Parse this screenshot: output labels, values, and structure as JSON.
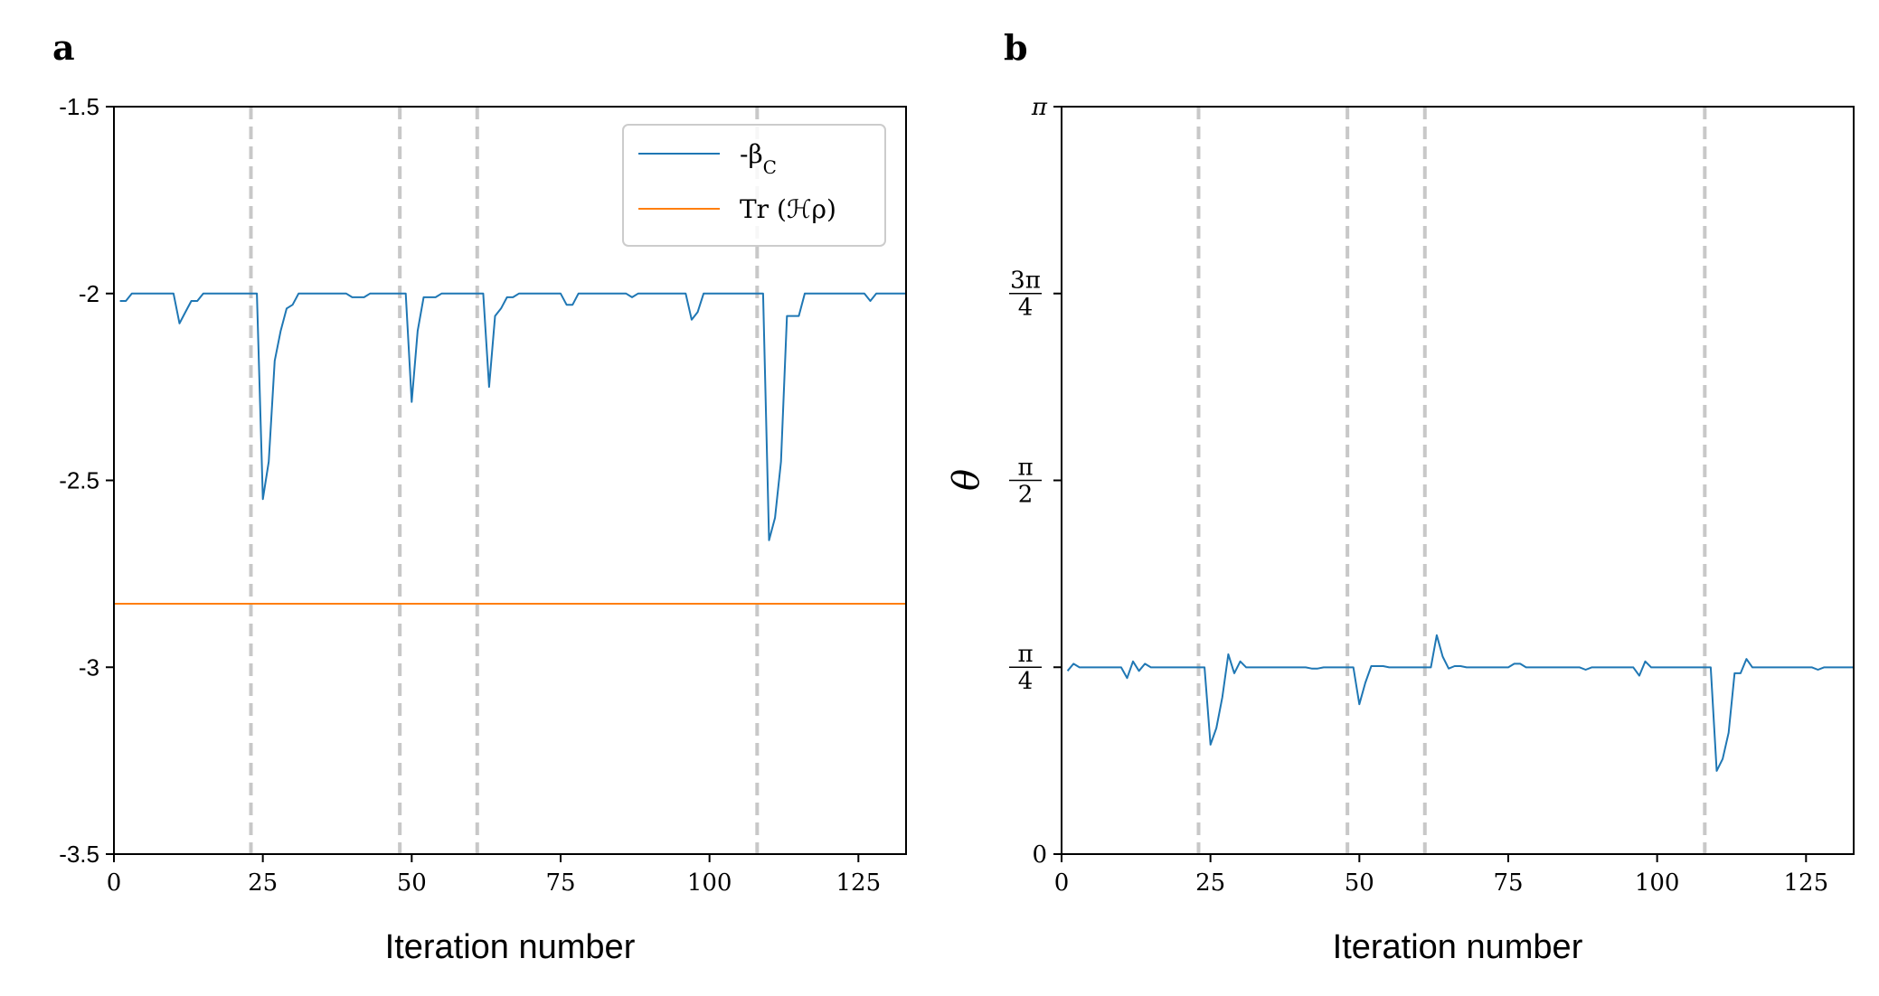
{
  "chart_data": [
    {
      "panel": "a",
      "type": "line",
      "xlabel": "Iteration number",
      "ylabel": "",
      "xlim": [
        0,
        133
      ],
      "ylim": [
        -3.5,
        -1.5
      ],
      "xticks": [
        0,
        25,
        50,
        75,
        100,
        125
      ],
      "xtick_labels": [
        "0",
        "25",
        "50",
        "75",
        "100",
        "125"
      ],
      "yticks": [
        -1.5,
        -2,
        -2.5,
        -3,
        -3.5
      ],
      "ytick_labels": [
        "-1.5",
        "-2",
        "-2.5",
        "-3",
        "-3.5"
      ],
      "vlines": [
        23,
        48,
        61,
        108
      ],
      "legend": "top-right",
      "grid": false,
      "series": [
        {
          "name": "-β_C",
          "legend_label": "-βC",
          "color": "#1f77b4",
          "x": [
            1,
            2,
            3,
            4,
            5,
            6,
            7,
            8,
            9,
            10,
            11,
            12,
            13,
            14,
            15,
            16,
            17,
            18,
            19,
            20,
            21,
            22,
            23,
            24,
            25,
            26,
            27,
            28,
            29,
            30,
            31,
            32,
            33,
            34,
            35,
            36,
            37,
            38,
            39,
            40,
            41,
            42,
            43,
            44,
            45,
            46,
            47,
            48,
            49,
            50,
            51,
            52,
            53,
            54,
            55,
            56,
            57,
            58,
            59,
            60,
            61,
            62,
            63,
            64,
            65,
            66,
            67,
            68,
            69,
            70,
            71,
            72,
            73,
            74,
            75,
            76,
            77,
            78,
            79,
            80,
            81,
            82,
            83,
            84,
            85,
            86,
            87,
            88,
            89,
            90,
            91,
            92,
            93,
            94,
            95,
            96,
            97,
            98,
            99,
            100,
            101,
            102,
            103,
            104,
            105,
            106,
            107,
            108,
            109,
            110,
            111,
            112,
            113,
            114,
            115,
            116,
            117,
            118,
            119,
            120,
            121,
            122,
            123,
            124,
            125,
            126,
            127,
            128,
            129,
            130,
            131,
            132,
            133
          ],
          "y": [
            -2.02,
            -2.02,
            -2.0,
            -2.0,
            -2.0,
            -2.0,
            -2.0,
            -2.0,
            -2.0,
            -2.0,
            -2.08,
            -2.05,
            -2.02,
            -2.02,
            -2.0,
            -2.0,
            -2.0,
            -2.0,
            -2.0,
            -2.0,
            -2.0,
            -2.0,
            -2.0,
            -2.0,
            -2.55,
            -2.45,
            -2.18,
            -2.1,
            -2.04,
            -2.03,
            -2.0,
            -2.0,
            -2.0,
            -2.0,
            -2.0,
            -2.0,
            -2.0,
            -2.0,
            -2.0,
            -2.01,
            -2.01,
            -2.01,
            -2.0,
            -2.0,
            -2.0,
            -2.0,
            -2.0,
            -2.0,
            -2.0,
            -2.29,
            -2.1,
            -2.01,
            -2.01,
            -2.01,
            -2.0,
            -2.0,
            -2.0,
            -2.0,
            -2.0,
            -2.0,
            -2.0,
            -2.0,
            -2.25,
            -2.06,
            -2.04,
            -2.01,
            -2.01,
            -2.0,
            -2.0,
            -2.0,
            -2.0,
            -2.0,
            -2.0,
            -2.0,
            -2.0,
            -2.03,
            -2.03,
            -2.0,
            -2.0,
            -2.0,
            -2.0,
            -2.0,
            -2.0,
            -2.0,
            -2.0,
            -2.0,
            -2.01,
            -2.0,
            -2.0,
            -2.0,
            -2.0,
            -2.0,
            -2.0,
            -2.0,
            -2.0,
            -2.0,
            -2.07,
            -2.05,
            -2.0,
            -2.0,
            -2.0,
            -2.0,
            -2.0,
            -2.0,
            -2.0,
            -2.0,
            -2.0,
            -2.0,
            -2.0,
            -2.66,
            -2.6,
            -2.45,
            -2.06,
            -2.06,
            -2.06,
            -2.0,
            -2.0,
            -2.0,
            -2.0,
            -2.0,
            -2.0,
            -2.0,
            -2.0,
            -2.0,
            -2.0,
            -2.0,
            -2.02,
            -2.0,
            -2.0,
            -2.0,
            -2.0,
            -2.0,
            -2.0
          ]
        },
        {
          "name": "Tr(Hρ)",
          "legend_label": "Tr (ℋρ)",
          "color": "#ff7f0e",
          "x": [
            0,
            133
          ],
          "y": [
            -2.83,
            -2.83
          ]
        }
      ]
    },
    {
      "panel": "b",
      "type": "line",
      "xlabel": "Iteration number",
      "ylabel": "θ",
      "xlim": [
        0,
        133
      ],
      "ylim": [
        0,
        3.14159
      ],
      "xticks": [
        0,
        25,
        50,
        75,
        100,
        125
      ],
      "xtick_labels": [
        "0",
        "25",
        "50",
        "75",
        "100",
        "125"
      ],
      "yticks": [
        0,
        0.785398,
        1.570796,
        2.356194,
        3.14159
      ],
      "ytick_labels": [
        "0",
        "π/4",
        "π/2",
        "3π/4",
        "π"
      ],
      "vlines": [
        23,
        48,
        61,
        108
      ],
      "grid": false,
      "series": [
        {
          "name": "θ",
          "color": "#1f77b4",
          "x": [
            1,
            2,
            3,
            4,
            5,
            6,
            7,
            8,
            9,
            10,
            11,
            12,
            13,
            14,
            15,
            16,
            17,
            18,
            19,
            20,
            21,
            22,
            23,
            24,
            25,
            26,
            27,
            28,
            29,
            30,
            31,
            32,
            33,
            34,
            35,
            36,
            37,
            38,
            39,
            40,
            41,
            42,
            43,
            44,
            45,
            46,
            47,
            48,
            49,
            50,
            51,
            52,
            53,
            54,
            55,
            56,
            57,
            58,
            59,
            60,
            61,
            62,
            63,
            64,
            65,
            66,
            67,
            68,
            69,
            70,
            71,
            72,
            73,
            74,
            75,
            76,
            77,
            78,
            79,
            80,
            81,
            82,
            83,
            84,
            85,
            86,
            87,
            88,
            89,
            90,
            91,
            92,
            93,
            94,
            95,
            96,
            97,
            98,
            99,
            100,
            101,
            102,
            103,
            104,
            105,
            106,
            107,
            108,
            109,
            110,
            111,
            112,
            113,
            114,
            115,
            116,
            117,
            118,
            119,
            120,
            121,
            122,
            123,
            124,
            125,
            126,
            127,
            128,
            129,
            130,
            131,
            132,
            133
          ],
          "y": [
            0.77,
            0.8,
            0.785,
            0.785,
            0.785,
            0.785,
            0.785,
            0.785,
            0.785,
            0.785,
            0.74,
            0.81,
            0.77,
            0.8,
            0.785,
            0.785,
            0.785,
            0.785,
            0.785,
            0.785,
            0.785,
            0.785,
            0.785,
            0.785,
            0.46,
            0.53,
            0.66,
            0.84,
            0.76,
            0.81,
            0.785,
            0.785,
            0.785,
            0.785,
            0.785,
            0.785,
            0.785,
            0.785,
            0.785,
            0.785,
            0.785,
            0.78,
            0.78,
            0.785,
            0.785,
            0.785,
            0.785,
            0.785,
            0.785,
            0.63,
            0.72,
            0.79,
            0.79,
            0.79,
            0.785,
            0.785,
            0.785,
            0.785,
            0.785,
            0.785,
            0.785,
            0.785,
            0.92,
            0.83,
            0.78,
            0.79,
            0.79,
            0.785,
            0.785,
            0.785,
            0.785,
            0.785,
            0.785,
            0.785,
            0.785,
            0.8,
            0.8,
            0.785,
            0.785,
            0.785,
            0.785,
            0.785,
            0.785,
            0.785,
            0.785,
            0.785,
            0.785,
            0.775,
            0.785,
            0.785,
            0.785,
            0.785,
            0.785,
            0.785,
            0.785,
            0.785,
            0.75,
            0.81,
            0.785,
            0.785,
            0.785,
            0.785,
            0.785,
            0.785,
            0.785,
            0.785,
            0.785,
            0.785,
            0.785,
            0.35,
            0.4,
            0.51,
            0.76,
            0.76,
            0.82,
            0.785,
            0.785,
            0.785,
            0.785,
            0.785,
            0.785,
            0.785,
            0.785,
            0.785,
            0.785,
            0.785,
            0.775,
            0.785,
            0.785,
            0.785,
            0.785,
            0.785,
            0.785
          ]
        }
      ]
    }
  ]
}
